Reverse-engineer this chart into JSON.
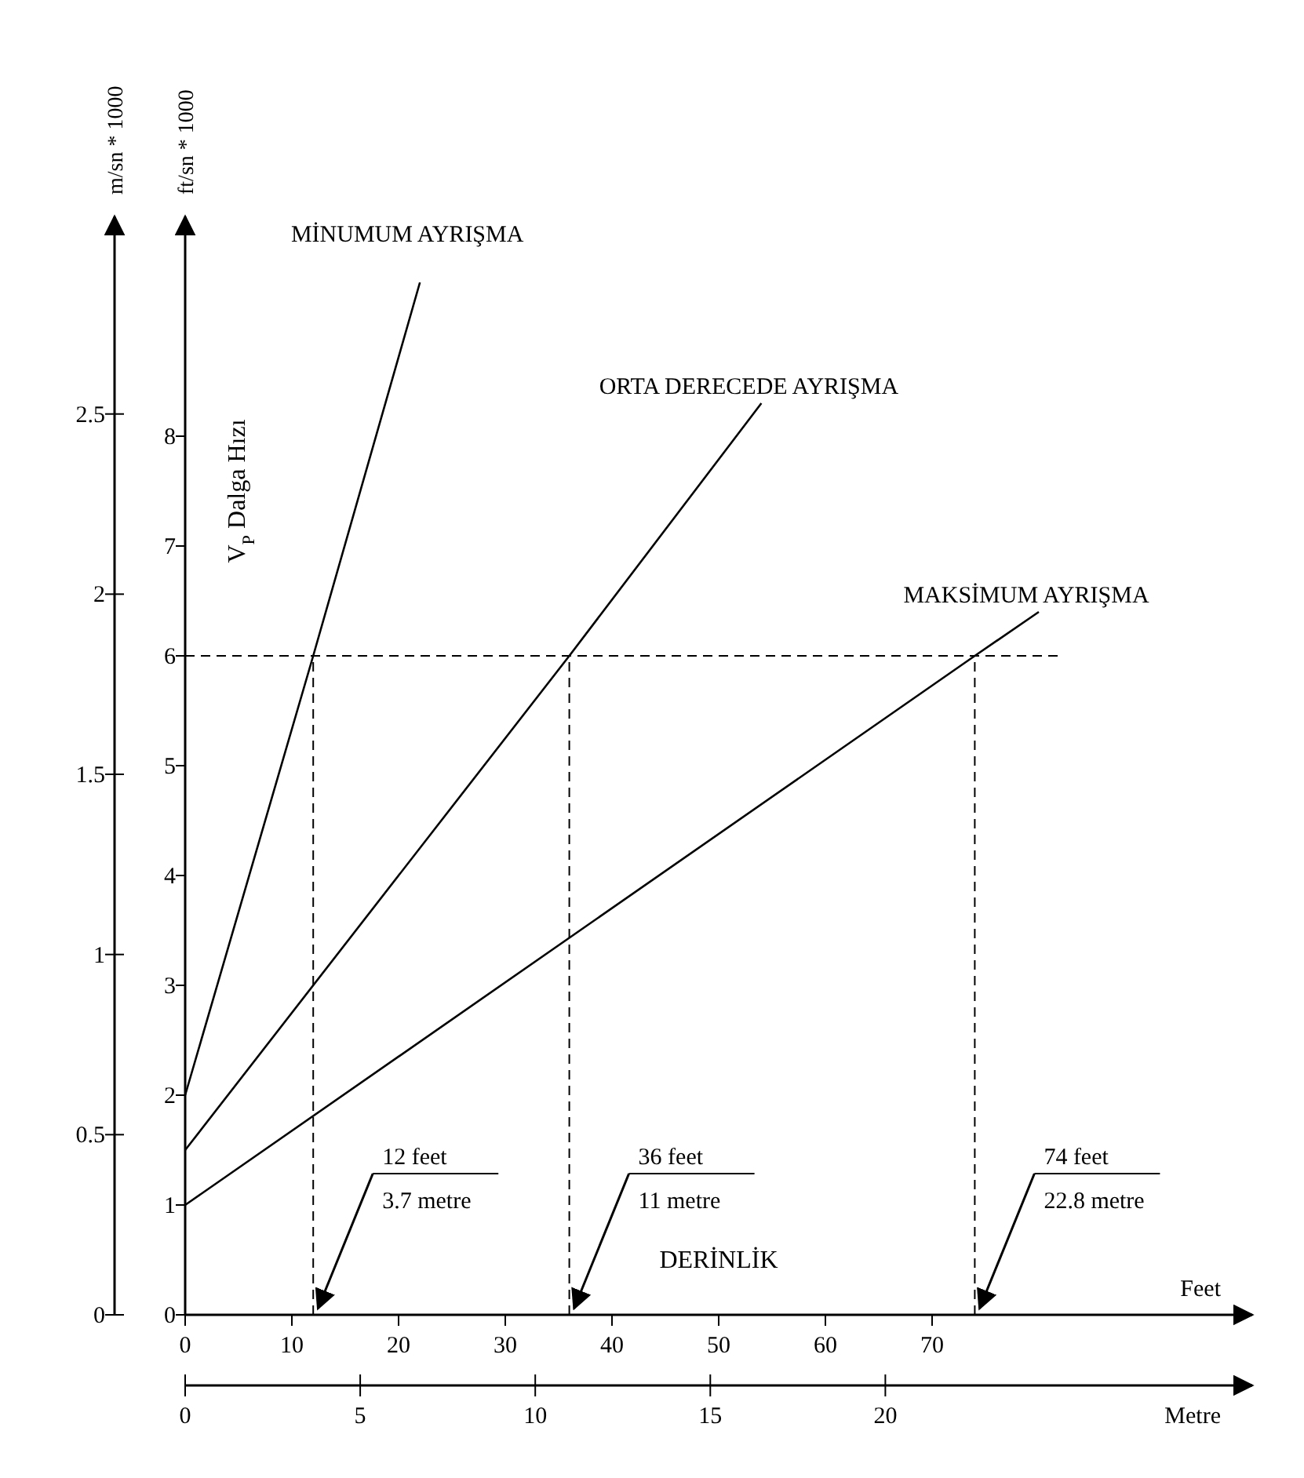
{
  "chart_data": {
    "type": "line",
    "xlabel": "Feet",
    "x2label": "Metre",
    "ylabel": "ft/sn * 1000",
    "y2label": "m/sn * 1000",
    "xlim": [
      0,
      100
    ],
    "xticks": [
      0,
      10,
      20,
      30,
      40,
      50,
      60,
      70
    ],
    "x2lim": [
      0,
      30.48
    ],
    "x2ticks": [
      0,
      5,
      10,
      15,
      20
    ],
    "ylim": [
      0,
      10
    ],
    "yticks": [
      0,
      1,
      2,
      3,
      4,
      5,
      6,
      7,
      8
    ],
    "y2lim": [
      0,
      3.048
    ],
    "y2ticks": [
      0,
      0.5,
      1,
      1.5,
      2,
      2.5
    ],
    "series": [
      {
        "name": "MİNUMUM AYRIŞMA",
        "color": "#000000",
        "x": [
          0,
          12,
          22
        ],
        "values": [
          2,
          6,
          9.4
        ]
      },
      {
        "name": "ORTA DERECEDE AYRIŞMA",
        "color": "#000000",
        "x": [
          0,
          36,
          54
        ],
        "values": [
          1.5,
          6,
          8.3
        ]
      },
      {
        "name": "MAKSİMUM AYRIŞMA",
        "color": "#000000",
        "x": [
          0,
          74,
          80
        ],
        "values": [
          1,
          6,
          6.4
        ]
      }
    ],
    "marker": "none",
    "line_style": "solid",
    "grid": false,
    "ref_lines": [
      {
        "axis": "y",
        "value": 6,
        "line_style": "dashed",
        "color": "#000000"
      },
      {
        "axis": "x",
        "value": 12,
        "line_style": "dashed",
        "color": "#000000"
      },
      {
        "axis": "x",
        "value": 36,
        "line_style": "dashed",
        "color": "#000000"
      },
      {
        "axis": "x",
        "value": 74,
        "line_style": "dashed",
        "color": "#000000"
      }
    ],
    "annotations": [
      "V$_{P}$ Dalga Hızı",
      "DERİNLİK",
      {
        "text": "12 feet\n3.7 metre",
        "x": 12,
        "y": 0
      },
      {
        "text": "36 feet\n11 metre",
        "x": 36,
        "y": 0
      },
      {
        "text": "74 feet\n22.8 metre",
        "x": 74,
        "y": 0
      }
    ]
  }
}
